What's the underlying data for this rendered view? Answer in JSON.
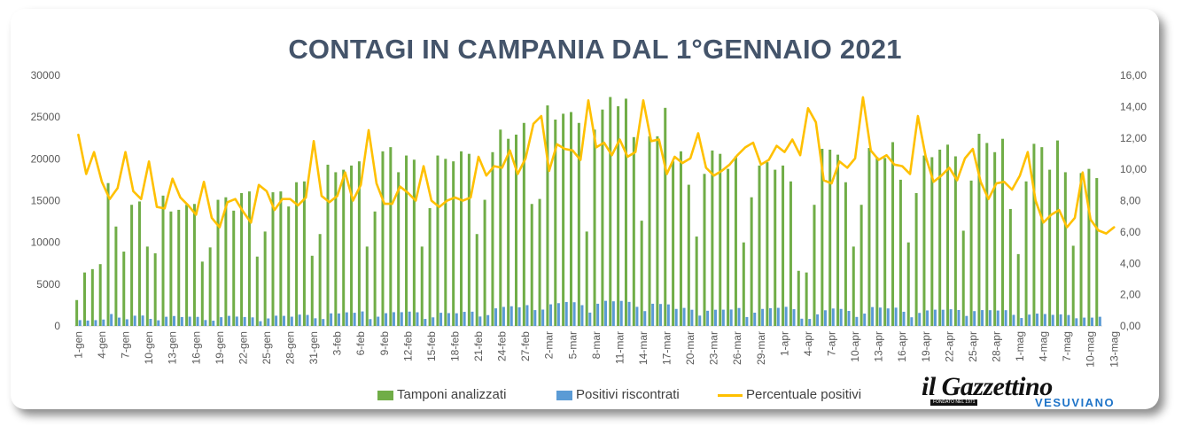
{
  "chart_data": {
    "type": "bar",
    "title": "CONTAGI IN CAMPANIA DAL 1°GENNAIO 2021",
    "xlabel": "",
    "ylabel": "",
    "ylim": [
      0,
      30000
    ],
    "y2lim": [
      0,
      16
    ],
    "y_ticks": [
      "0",
      "5000",
      "10000",
      "15000",
      "20000",
      "25000",
      "30000"
    ],
    "y2_ticks": [
      "0,00",
      "2,00",
      "4,00",
      "6,00",
      "8,00",
      "10,00",
      "12,00",
      "14,00",
      "16,00"
    ],
    "x_tick_labels": [
      "1-gen",
      "4-gen",
      "7-gen",
      "10-gen",
      "13-gen",
      "16-gen",
      "19-gen",
      "22-gen",
      "25-gen",
      "28-gen",
      "31-gen",
      "3-feb",
      "6-feb",
      "9-feb",
      "12-feb",
      "15-feb",
      "18-feb",
      "21-feb",
      "24-feb",
      "27-feb",
      "2-mar",
      "5-mar",
      "8-mar",
      "11-mar",
      "14-mar",
      "17-mar",
      "20-mar",
      "23-mar",
      "26-mar",
      "29-mar",
      "1-apr",
      "4-apr",
      "7-apr",
      "10-apr",
      "13-apr",
      "16-apr",
      "19-apr",
      "22-apr",
      "25-apr",
      "28-apr",
      "1-mag",
      "4-mag",
      "7-mag",
      "10-mag",
      "13-mag"
    ],
    "legend_position": "bottom",
    "grid": false,
    "series": [
      {
        "name": "Tamponi analizzati",
        "axis": "left",
        "chart": "bar",
        "color": "#70ad47",
        "values": [
          3100,
          6400,
          6800,
          7400,
          17100,
          11900,
          8900,
          14500,
          14900,
          9500,
          8700,
          15600,
          13700,
          13900,
          14500,
          14600,
          7700,
          9400,
          15100,
          15400,
          13800,
          15900,
          16100,
          8300,
          11300,
          16000,
          16100,
          14300,
          17200,
          17300,
          8400,
          11000,
          19300,
          18400,
          18700,
          19200,
          19700,
          9500,
          13700,
          20900,
          21400,
          18400,
          20400,
          19900,
          9500,
          14100,
          20400,
          20000,
          19700,
          20900,
          20600,
          11000,
          15100,
          20800,
          23500,
          22400,
          22900,
          24300,
          14600,
          15200,
          26400,
          24700,
          25400,
          25600,
          24300,
          11300,
          23500,
          25900,
          27400,
          26300,
          27200,
          22600,
          12600,
          22700,
          22700,
          26100,
          19700,
          20900,
          16900,
          10700,
          18200,
          21000,
          20600,
          18800,
          20300,
          10000,
          15400,
          19200,
          19600,
          18700,
          19200,
          17300,
          6600,
          6400,
          14500,
          21200,
          21100,
          20500,
          17200,
          9500,
          14500,
          21300,
          20200,
          20100,
          22000,
          17500,
          10000,
          15900,
          20400,
          20200,
          21100,
          21700,
          20300,
          11400,
          17400,
          23000,
          21900,
          20800,
          22400,
          14000,
          8600,
          17300,
          21800,
          21400,
          18700,
          22200,
          18400,
          9600,
          18300,
          18800,
          17700
        ]
      },
      {
        "name": "Positivi riscontrati",
        "axis": "left",
        "chart": "bar",
        "color": "#5b9bd5",
        "values": [
          700,
          650,
          700,
          770,
          1430,
          1000,
          800,
          1230,
          1250,
          850,
          680,
          1100,
          1190,
          1070,
          1110,
          1090,
          710,
          630,
          1050,
          1210,
          1120,
          1070,
          1030,
          570,
          900,
          1230,
          1210,
          1110,
          1360,
          1320,
          920,
          830,
          1510,
          1500,
          1630,
          1580,
          1740,
          820,
          1110,
          1530,
          1650,
          1650,
          1720,
          1640,
          840,
          1030,
          1580,
          1540,
          1520,
          1690,
          1710,
          1130,
          1300,
          2110,
          2280,
          2360,
          2230,
          2490,
          1900,
          1960,
          2590,
          2730,
          2870,
          2840,
          2490,
          1600,
          2660,
          3010,
          2950,
          3000,
          2880,
          2290,
          1780,
          2660,
          2630,
          2580,
          2040,
          2160,
          1940,
          1240,
          1820,
          1940,
          1950,
          1970,
          2150,
          1070,
          1590,
          2040,
          2120,
          2170,
          2290,
          2010,
          870,
          840,
          1390,
          1880,
          2090,
          2040,
          1800,
          1080,
          1480,
          2260,
          2200,
          2100,
          2190,
          1700,
          1040,
          1560,
          1860,
          1950,
          1940,
          2000,
          1910,
          1200,
          1780,
          1900,
          1890,
          1850,
          1890,
          1330,
          950,
          1360,
          1480,
          1430,
          1330,
          1390,
          1310,
          920,
          1000,
          1000,
          1100
        ]
      },
      {
        "name": "Percentuale positivi",
        "axis": "right",
        "chart": "line",
        "color": "#ffc000",
        "values": [
          12.2,
          9.7,
          11.1,
          9.2,
          8.1,
          8.8,
          11.1,
          8.6,
          8.1,
          10.5,
          7.6,
          7.5,
          9.4,
          8.2,
          7.7,
          7.1,
          9.2,
          6.9,
          6.3,
          7.9,
          8.1,
          7.3,
          6.6,
          9.0,
          8.6,
          7.4,
          8.1,
          8.1,
          7.7,
          8.2,
          11.8,
          8.3,
          7.9,
          8.3,
          9.8,
          8.0,
          9.0,
          12.5,
          9.1,
          7.8,
          7.8,
          8.9,
          8.5,
          8.0,
          10.2,
          8.0,
          7.6,
          8.0,
          8.2,
          8.0,
          8.2,
          10.8,
          9.6,
          10.2,
          10.1,
          11.2,
          9.7,
          10.7,
          12.9,
          13.4,
          9.9,
          11.6,
          11.3,
          11.2,
          10.6,
          14.4,
          11.4,
          11.7,
          10.9,
          11.9,
          10.8,
          11.1,
          14.4,
          11.8,
          11.9,
          9.7,
          10.8,
          10.4,
          10.7,
          12.3,
          10.1,
          9.6,
          9.9,
          10.3,
          10.9,
          11.4,
          11.7,
          10.3,
          10.6,
          11.5,
          11.1,
          11.9,
          10.9,
          13.9,
          13.0,
          9.3,
          9.1,
          10.5,
          10.1,
          10.7,
          14.6,
          11.2,
          10.6,
          10.9,
          10.3,
          10.2,
          9.7,
          13.4,
          10.8,
          9.2,
          9.6,
          10.1,
          9.3,
          10.7,
          11.3,
          9.2,
          8.1,
          9.1,
          9.2,
          8.7,
          9.6,
          11.1,
          8.0,
          6.6,
          7.1,
          7.4,
          6.3,
          6.9,
          9.8,
          6.8,
          6.1,
          5.9,
          6.3
        ]
      }
    ]
  },
  "legend": {
    "tamponi": "Tamponi analizzati",
    "positivi": "Positivi riscontrati",
    "percentuale": "Percentuale positivi"
  },
  "logo": {
    "text": "il Gazzettino",
    "tagline": "FONDATO NEL 1971",
    "subtitle": "VESUVIANO"
  },
  "colors": {
    "title": "#44546a",
    "axis_text": "#595959"
  }
}
